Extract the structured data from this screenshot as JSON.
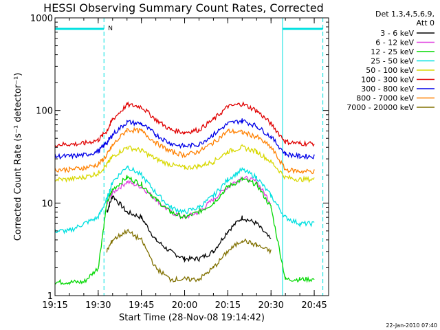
{
  "chart_data": {
    "type": "line",
    "title": "HESSI Observing Summary Count Rates, Corrected",
    "xlabel": "Start Time (28-Nov-08 19:14:42)",
    "ylabel": "Corrected Count Rate (s⁻¹ detector⁻¹)",
    "yscale": "log",
    "ylim": [
      1,
      1000
    ],
    "xlim": [
      "19:15",
      "20:50"
    ],
    "x_ticks": [
      "19:15",
      "19:30",
      "19:45",
      "20:00",
      "20:15",
      "20:30",
      "20:45"
    ],
    "y_ticks": [
      "1",
      "10",
      "100",
      "1000"
    ],
    "legend_header": [
      "Det 1,3,4,5,6,9,",
      "Att 0"
    ],
    "legend_position": "right-outside-top",
    "timestamp": "22-Jan-2010 07:40",
    "night_label": "N",
    "night_periods": [
      [
        "19:15",
        "19:32"
      ],
      [
        "20:34",
        "20:48"
      ]
    ],
    "saa_markers": [
      "19:32",
      "20:48"
    ],
    "times": [
      "19:15",
      "19:20",
      "19:25",
      "19:30",
      "19:33",
      "19:35",
      "19:40",
      "19:45",
      "19:50",
      "19:55",
      "20:00",
      "20:05",
      "20:10",
      "20:15",
      "20:20",
      "20:25",
      "20:30",
      "20:35",
      "20:40",
      "20:45"
    ],
    "series": [
      {
        "name": "3 - 6 keV",
        "color": "#000000",
        "values": [
          null,
          null,
          null,
          null,
          8,
          12,
          8,
          7,
          4,
          3,
          2.5,
          2.5,
          3,
          5,
          7,
          6,
          4,
          null,
          null,
          null
        ]
      },
      {
        "name": "6 - 12 keV",
        "color": "#e040e0",
        "values": [
          null,
          null,
          null,
          null,
          10,
          13,
          17,
          15,
          11,
          8,
          7,
          8,
          11,
          15,
          19,
          17,
          10,
          null,
          null,
          null
        ]
      },
      {
        "name": "12 - 25 keV",
        "color": "#00d800",
        "values": [
          1.4,
          1.4,
          1.4,
          2,
          10,
          14,
          19,
          16,
          11,
          8,
          7,
          8,
          10,
          15,
          18,
          16,
          9,
          1.5,
          1.5,
          1.5
        ]
      },
      {
        "name": "25 - 50 keV",
        "color": "#00e0e0",
        "values": [
          5,
          5,
          6,
          7,
          11,
          17,
          25,
          20,
          13,
          9,
          8,
          9,
          12,
          18,
          23,
          19,
          12,
          7,
          6,
          6
        ]
      },
      {
        "name": "50 - 100 keV",
        "color": "#d8d800",
        "values": [
          18,
          18,
          19,
          21,
          26,
          32,
          40,
          37,
          30,
          26,
          24,
          25,
          28,
          36,
          40,
          36,
          28,
          19,
          18,
          18
        ]
      },
      {
        "name": "100 - 300 keV",
        "color": "#e00000",
        "values": [
          43,
          43,
          44,
          48,
          60,
          80,
          115,
          110,
          80,
          62,
          58,
          62,
          80,
          110,
          118,
          100,
          72,
          46,
          44,
          44
        ]
      },
      {
        "name": "300 - 800 keV",
        "color": "#0000e8",
        "values": [
          32,
          32,
          33,
          36,
          45,
          55,
          75,
          72,
          55,
          44,
          41,
          43,
          55,
          72,
          78,
          68,
          52,
          34,
          32,
          32
        ]
      },
      {
        "name": "800 - 7000 keV",
        "color": "#ff8000",
        "values": [
          23,
          23,
          24,
          26,
          33,
          42,
          62,
          60,
          45,
          36,
          33,
          36,
          45,
          60,
          58,
          52,
          40,
          23,
          22,
          22
        ]
      },
      {
        "name": "7000 - 20000 keV",
        "color": "#807000",
        "values": [
          null,
          null,
          null,
          null,
          3,
          4,
          5,
          4,
          2,
          1.5,
          1.5,
          1.5,
          2,
          3,
          4,
          3.5,
          3,
          null,
          null,
          null
        ]
      }
    ]
  }
}
